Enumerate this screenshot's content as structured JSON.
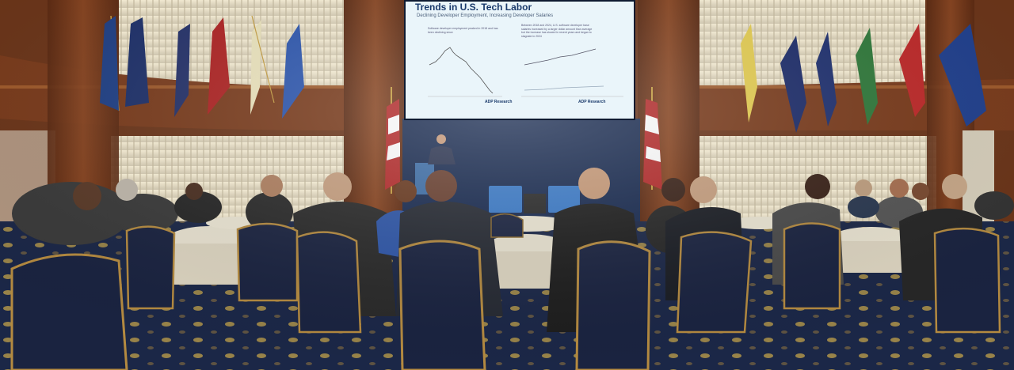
{
  "photo": {
    "description_visible_text": true,
    "screen": {
      "title": "Trends in U.S. Tech Labor",
      "subtitle": "Declining Developer Employment, Increasing Developer Salaries",
      "left_panel_caption": "Software developer employment peaked in 2018 and has been declining since",
      "right_panel_caption": "Between 2018 and 2024, U.S. software developer base salaries increased by a larger dollar amount than average but the increase has slowed in recent years and began to stagnate in 2024",
      "brand_left": "ADP Research",
      "brand_right": "ADP Research"
    },
    "colors": {
      "wall_wood": "#7a3a1a",
      "carpet": "#1c2a4a",
      "curtain": "#e8e0cc",
      "screen_bg": "#eaf4f8",
      "stage_backdrop": "#1a2c52"
    }
  }
}
